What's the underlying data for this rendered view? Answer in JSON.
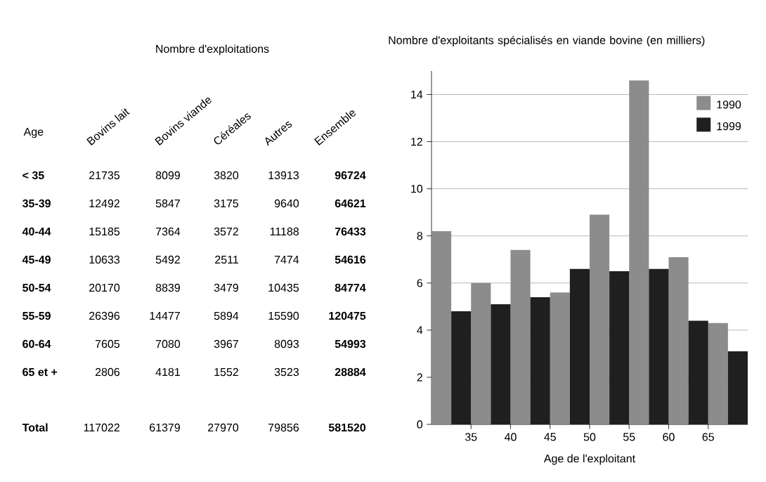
{
  "chart_data": [
    {
      "type": "other",
      "title": "Nombre d'exploitations",
      "ylabel": "Age",
      "categories": [
        "Bovins lait",
        "Bovins viande",
        "Céréales",
        "Autres",
        "Ensemble"
      ],
      "data_labels": true,
      "series": [
        {
          "name": "< 35",
          "values": [
            21735,
            8099,
            3820,
            13913,
            96724
          ]
        },
        {
          "name": "35-39",
          "values": [
            12492,
            5847,
            3175,
            9640,
            64621
          ]
        },
        {
          "name": "40-44",
          "values": [
            15185,
            7364,
            3572,
            11188,
            76433
          ]
        },
        {
          "name": "45-49",
          "values": [
            10633,
            5492,
            2511,
            7474,
            54616
          ]
        },
        {
          "name": "50-54",
          "values": [
            20170,
            8839,
            3479,
            10435,
            84774
          ]
        },
        {
          "name": "55-59",
          "values": [
            26396,
            14477,
            5894,
            15590,
            120475
          ]
        },
        {
          "name": "60-64",
          "values": [
            7605,
            7080,
            3967,
            8093,
            54993
          ]
        },
        {
          "name": "65 et +",
          "values": [
            2806,
            4181,
            1552,
            3523,
            28884
          ]
        },
        {
          "name": "Total",
          "values": [
            117022,
            61379,
            27970,
            79856,
            581520
          ]
        }
      ]
    },
    {
      "type": "bar",
      "title": "Nombre d'exploitants spécialisés en viande bovine (en milliers)",
      "xlabel": "Age de l'exploitant",
      "x": [
        32.5,
        37.5,
        42.5,
        47.5,
        52.5,
        57.5,
        62.5,
        67.5
      ],
      "series": [
        {
          "name": "1990",
          "color": "#8c8c8c",
          "values": [
            8.2,
            6.0,
            7.4,
            5.6,
            8.9,
            14.6,
            7.1,
            4.3
          ]
        },
        {
          "name": "1999",
          "color": "#1f1f1f",
          "values": [
            4.8,
            5.1,
            5.4,
            6.6,
            6.5,
            6.6,
            4.4,
            3.1
          ]
        }
      ],
      "xlim": [
        30,
        70
      ],
      "ylim": [
        0,
        15
      ],
      "xticks": [
        35,
        40,
        45,
        50,
        55,
        60,
        65
      ],
      "yticks": [
        0,
        2,
        4,
        6,
        8,
        10,
        12,
        14
      ],
      "grid": "y",
      "legend": "top right"
    }
  ]
}
